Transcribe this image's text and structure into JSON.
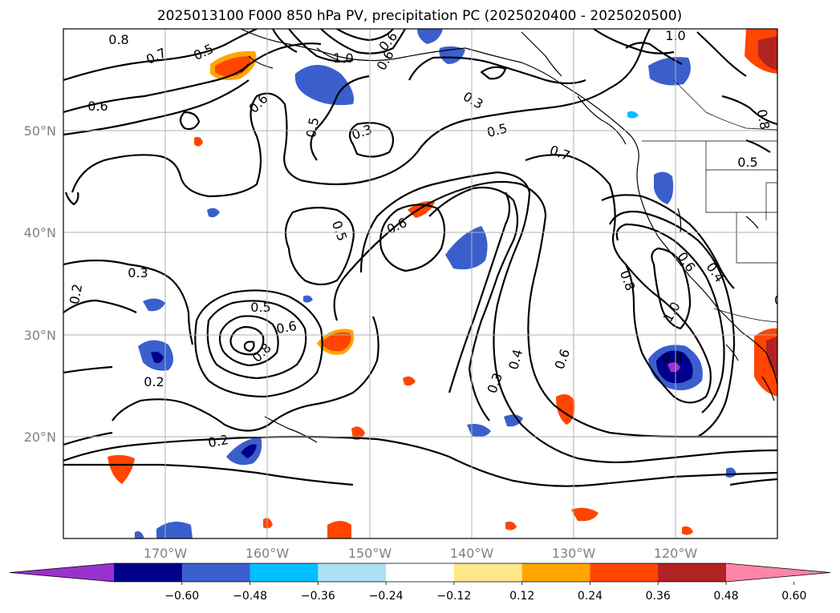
{
  "title": "2025013100 F000 850 hPa PV, precipitation PC (2025020400 - 2025020500)",
  "lat_labels": [
    "50°N",
    "40°N",
    "30°N",
    "20°N"
  ],
  "lon_labels": [
    "170°W",
    "160°W",
    "150°W",
    "140°W",
    "130°W",
    "120°W"
  ],
  "colorbar": {
    "colors": [
      "#9932CC",
      "#00008B",
      "#3A5FCD",
      "#00BFFF",
      "#ADE0F5",
      "#FFFFFF",
      "#FFE88A",
      "#FFA500",
      "#FF4500",
      "#B22222",
      "#FF85A8"
    ],
    "tick_labels": [
      "−0.60",
      "−0.48",
      "−0.36",
      "−0.24",
      "−0.12",
      "0.12",
      "0.24",
      "0.36",
      "0.48",
      "0.60"
    ]
  },
  "contour_labels": [
    "0.8",
    "0.7",
    "0.5",
    "0.6",
    "0.6",
    "0.6",
    "1.0",
    "0.6",
    "1.0",
    "0.8",
    "0.3",
    "0.5",
    "0.3",
    "0.5",
    "0.7",
    "0.6",
    "0.5",
    "0.8",
    "0.6",
    "0.4",
    "0.5",
    "0.6",
    "0.3",
    "0.2",
    "0.5",
    "0.6",
    "0.8",
    "0.2",
    "0.2",
    "0.8",
    "1.0",
    "0.3",
    "0.4",
    "0.6"
  ]
}
